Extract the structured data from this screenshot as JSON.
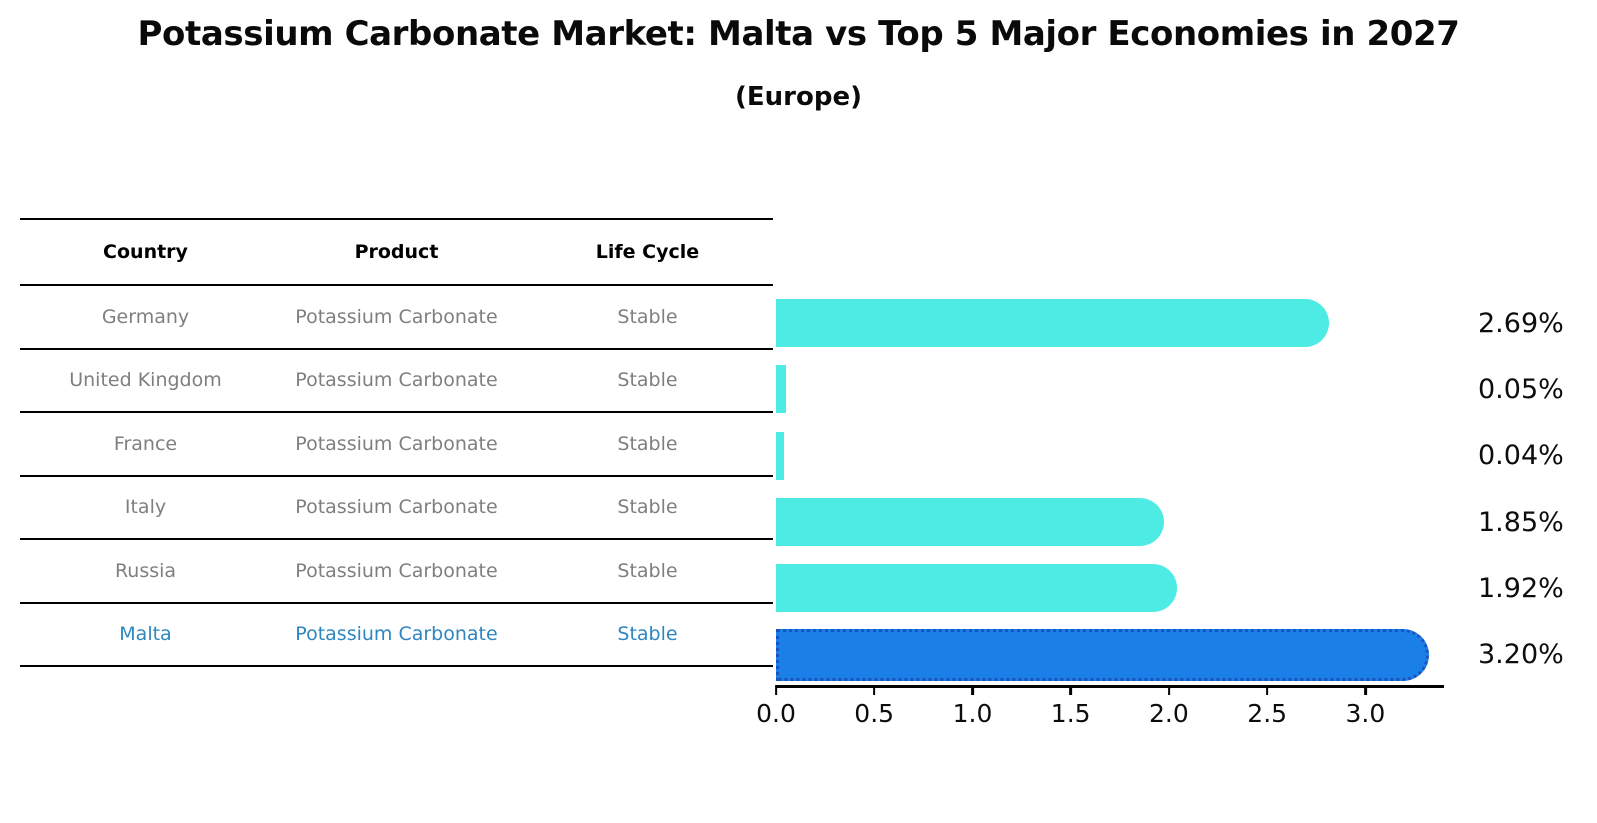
{
  "title": "Potassium Carbonate Market: Malta vs Top 5 Major Economies in 2027",
  "subtitle": "(Europe)",
  "table": {
    "headers": [
      "Country",
      "Product",
      "Life Cycle"
    ],
    "rows": [
      {
        "country": "Germany",
        "product": "Potassium Carbonate",
        "life_cycle": "Stable"
      },
      {
        "country": "United Kingdom",
        "product": "Potassium Carbonate",
        "life_cycle": "Stable"
      },
      {
        "country": "France",
        "product": "Potassium Carbonate",
        "life_cycle": "Stable"
      },
      {
        "country": "Italy",
        "product": "Potassium Carbonate",
        "life_cycle": "Stable"
      },
      {
        "country": "Russia",
        "product": "Potassium Carbonate",
        "life_cycle": "Stable"
      },
      {
        "country": "Malta",
        "product": "Potassium Carbonate",
        "life_cycle": "Stable"
      }
    ]
  },
  "chart_data": {
    "type": "bar",
    "orientation": "horizontal",
    "title": "Potassium Carbonate Market: Malta vs Top 5 Major Economies in 2027",
    "subtitle": "(Europe)",
    "categories": [
      "Germany",
      "United Kingdom",
      "France",
      "Italy",
      "Russia",
      "Malta"
    ],
    "values": [
      2.69,
      0.05,
      0.04,
      1.85,
      1.92,
      3.2
    ],
    "value_labels": [
      "2.69%",
      "0.05%",
      "0.04%",
      "1.85%",
      "1.92%",
      "3.20%"
    ],
    "x_tick_values": [
      0,
      0.5,
      1,
      1.5,
      2,
      2.5,
      3
    ],
    "x_tick_labels": [
      "0.0",
      "0.5",
      "1.0",
      "1.5",
      "2.0",
      "2.5",
      "3.0"
    ],
    "xlim": [
      0,
      3.4
    ],
    "grid": false,
    "legend": false,
    "highlight_index": 5,
    "colors": {
      "bar": "#4DEBE3",
      "highlight_bar": "#1B7FE8",
      "highlight_border": "#1C52BE",
      "highlight_text": "#2E86C1",
      "table_text": "#7F7F7F"
    }
  }
}
